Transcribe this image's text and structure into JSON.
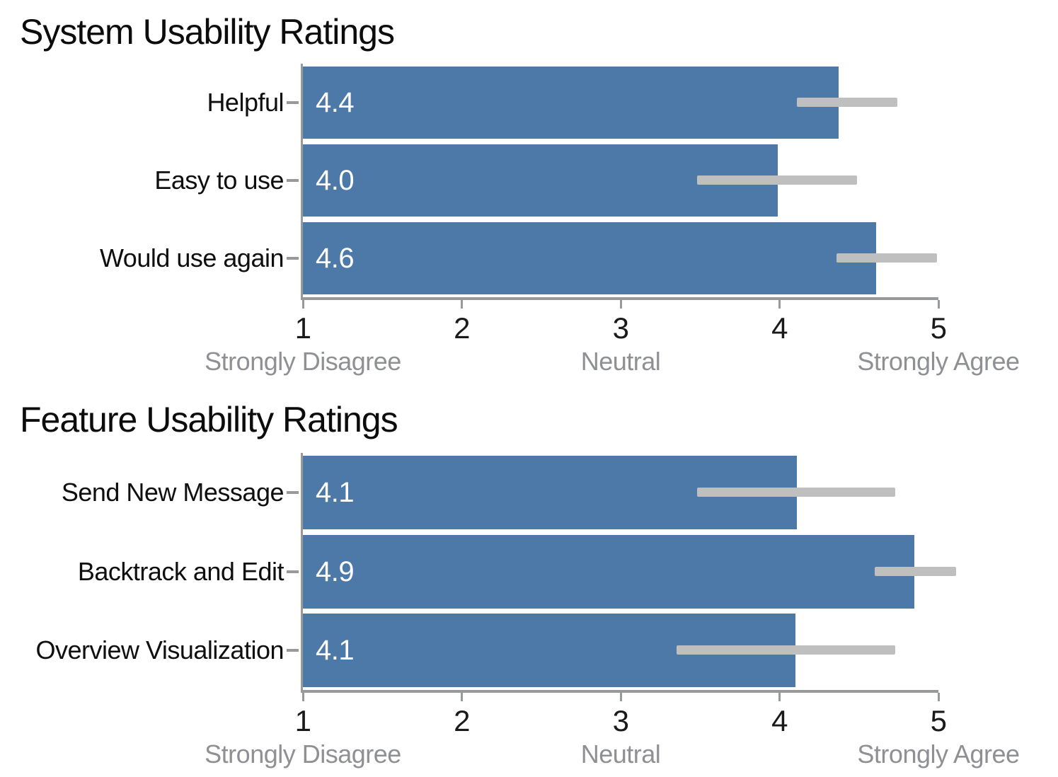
{
  "style": {
    "background": "#ffffff",
    "bar_color": "#4d79a8",
    "error_color": "#bfbfbf",
    "axis_color": "#98999b",
    "title_color": "#0c0c0c",
    "category_label_color": "#0f0f0f",
    "tick_label_color": "#1a1a1a",
    "sublabel_color": "#8f9094",
    "value_label_color": "#ffffff"
  },
  "chart_data": [
    {
      "type": "bar",
      "orientation": "horizontal",
      "title": "System Usability Ratings",
      "categories": [
        "Helpful",
        "Easy to use",
        "Would use again"
      ],
      "values": [
        4.37,
        3.99,
        4.61
      ],
      "value_labels": [
        "4.4",
        "4.0",
        "4.6"
      ],
      "error_low": [
        4.11,
        3.48,
        4.36
      ],
      "error_high": [
        4.74,
        4.49,
        4.99
      ],
      "xlim": [
        1,
        5
      ],
      "xticks": [
        1,
        2,
        3,
        4,
        5
      ],
      "xtick_labels": [
        "1",
        "2",
        "3",
        "4",
        "5"
      ],
      "xtick_sublabels": [
        "Strongly Disagree",
        "",
        "Neutral",
        "",
        "Strongly Agree"
      ],
      "grid": false,
      "legend": null
    },
    {
      "type": "bar",
      "orientation": "horizontal",
      "title": "Feature Usability Ratings",
      "categories": [
        "Send New Message",
        "Backtrack and Edit",
        "Overview Visualization"
      ],
      "values": [
        4.11,
        4.85,
        4.1
      ],
      "value_labels": [
        "4.1",
        "4.9",
        "4.1"
      ],
      "error_low": [
        3.48,
        4.6,
        3.35
      ],
      "error_high": [
        4.73,
        5.11,
        4.73
      ],
      "xlim": [
        1,
        5
      ],
      "xticks": [
        1,
        2,
        3,
        4,
        5
      ],
      "xtick_labels": [
        "1",
        "2",
        "3",
        "4",
        "5"
      ],
      "xtick_sublabels": [
        "Strongly Disagree",
        "",
        "Neutral",
        "",
        "Strongly Agree"
      ],
      "grid": false,
      "legend": null
    }
  ]
}
